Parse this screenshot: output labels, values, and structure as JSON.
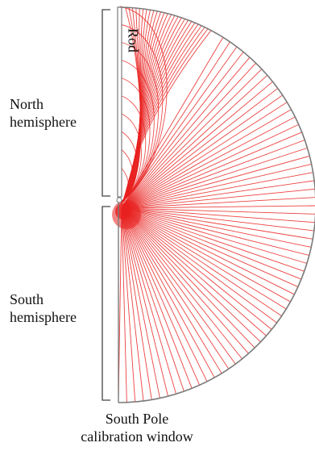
{
  "labels": {
    "rod": "Rod",
    "north_line1": "North",
    "north_line2": "hemisphere",
    "south_line1": "South",
    "south_line2": "hemisphere",
    "window_line1": "South Pole",
    "window_line2": "calibration window"
  },
  "colors": {
    "field_lines": "#e8211f",
    "outline": "#7a7a7a",
    "bracket": "#444444",
    "text": "#111111"
  }
}
